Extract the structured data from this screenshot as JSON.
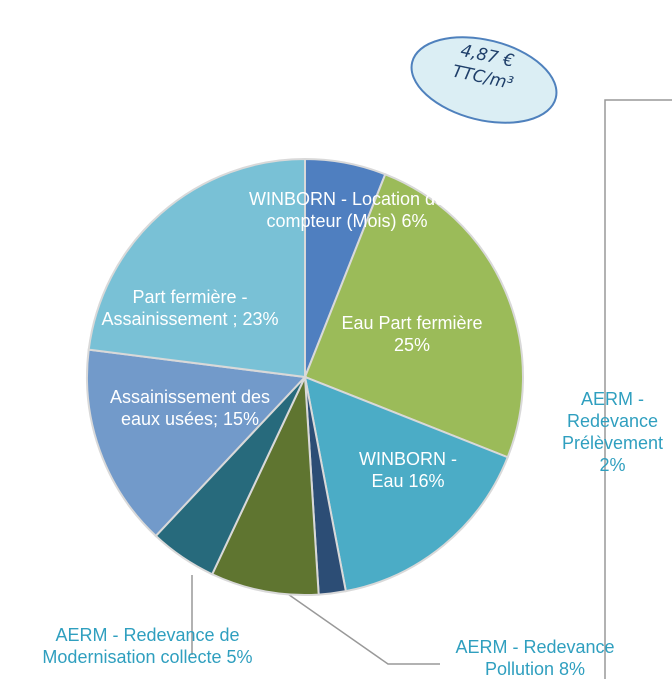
{
  "chart_data": {
    "type": "pie",
    "annotation": "4,87 € TTC/m³",
    "categories": [
      "WINBORN -  Location de compteur  (Mois)",
      "Eau Part fermière",
      "WINBORN - Eau",
      "AERM - Redevance Prélèvement",
      "AERM - Redevance Pollution",
      "AERM - Redevance de Modernisation collecte",
      "Assainissement des eaux usées;",
      "Part fermière - Assainissement ;"
    ],
    "values": [
      6,
      25,
      16,
      2,
      8,
      5,
      15,
      23
    ],
    "value_labels": [
      "6%",
      "25%",
      "16%",
      "2%",
      "8%",
      "5%",
      "15%",
      "23%"
    ],
    "colors": [
      "#4f7fc0",
      "#9bbb59",
      "#4bacc6",
      "#2c4d75",
      "#5f7530",
      "#276a7c",
      "#729aca",
      "#79c1d6"
    ]
  }
}
